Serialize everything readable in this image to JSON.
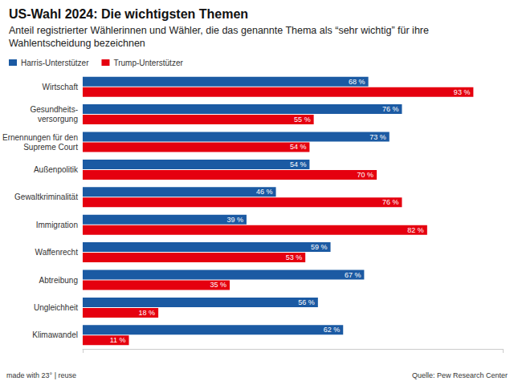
{
  "chart_data": {
    "type": "bar",
    "orientation": "horizontal",
    "title": "US-Wahl 2024: Die wichtigsten Themen",
    "subtitle": "Anteil registrierter Wählerinnen und Wähler, die das genannte Thema als “sehr wichtig” für ihre Wahlentscheidung bezeichnen",
    "annotations": [
      "made with 23° | reuse",
      "Quelle: Pew Research Center"
    ],
    "categories": [
      "Wirtschaft",
      "Gesundheits-\nversorgung",
      "Ernennungen für den\nSupreme Court",
      "Außenpolitik",
      "Gewaltkriminalität",
      "Immigration",
      "Waffenrecht",
      "Abtreibung",
      "Ungleichheit",
      "Klimawandel"
    ],
    "series": [
      {
        "name": "Harris-Unterstützer",
        "color": "#1b5aa3",
        "values": [
          68,
          76,
          73,
          54,
          46,
          39,
          59,
          67,
          56,
          62
        ],
        "value_labels": [
          "68 %",
          "76 %",
          "73 %",
          "54 %",
          "46 %",
          "39 %",
          "59 %",
          "67 %",
          "56 %",
          "62 %"
        ]
      },
      {
        "name": "Trump-Unterstützer",
        "color": "#e5000f",
        "values": [
          93,
          55,
          54,
          70,
          76,
          82,
          53,
          35,
          18,
          11
        ],
        "value_labels": [
          "93 %",
          "55 %",
          "54 %",
          "70 %",
          "76 %",
          "82 %",
          "53 %",
          "35 %",
          "18 %",
          "11 %"
        ]
      }
    ],
    "xlim": [
      0,
      100
    ],
    "xticks": [
      0,
      100
    ],
    "tick_labels": "y",
    "grid": false,
    "legend": "top-left",
    "data_labels": true
  }
}
